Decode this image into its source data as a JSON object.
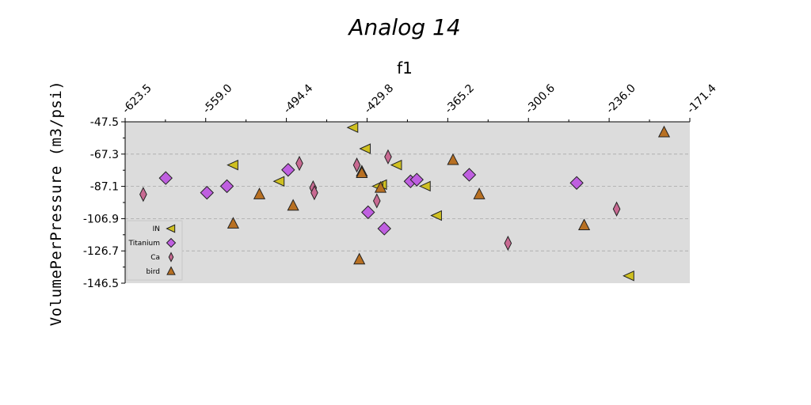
{
  "chart_data": {
    "type": "scatter",
    "title": "Analog 14",
    "xlabel": "f1",
    "ylabel": "VolumePerPressure (m3/psi)",
    "xlim": [
      -623.5,
      -171.4
    ],
    "ylim": [
      -146.5,
      -47.5
    ],
    "xticks": [
      "-623.5",
      "-559.0",
      "-494.4",
      "-429.8",
      "-365.2",
      "-300.6",
      "-236.0",
      "-171.4"
    ],
    "yticks": [
      "-47.5",
      "-67.3",
      "-87.1",
      "-106.9",
      "-126.7",
      "-146.5"
    ],
    "grid": "horizontal dashed",
    "legend_position": "lower-left",
    "series": [
      {
        "name": "IN",
        "marker": "triangle-left",
        "color": "#cfc021",
        "points": [
          {
            "x": -441,
            "y": -51
          },
          {
            "x": -431,
            "y": -64
          },
          {
            "x": -537,
            "y": -74
          },
          {
            "x": -406,
            "y": -74
          },
          {
            "x": -500,
            "y": -84
          },
          {
            "x": -418,
            "y": -86
          },
          {
            "x": -421,
            "y": -87
          },
          {
            "x": -383,
            "y": -87
          },
          {
            "x": -374,
            "y": -105
          },
          {
            "x": -220,
            "y": -142
          }
        ]
      },
      {
        "name": "Titanium",
        "marker": "diamond",
        "color": "#bf5fe0",
        "points": [
          {
            "x": -591,
            "y": -82
          },
          {
            "x": -542,
            "y": -87
          },
          {
            "x": -558,
            "y": -91
          },
          {
            "x": -493,
            "y": -77
          },
          {
            "x": -395,
            "y": -84
          },
          {
            "x": -390,
            "y": -83
          },
          {
            "x": -348,
            "y": -80
          },
          {
            "x": -262,
            "y": -85
          },
          {
            "x": -429,
            "y": -103
          },
          {
            "x": -416,
            "y": -113
          }
        ]
      },
      {
        "name": "Ca",
        "marker": "thin-diamond",
        "color": "#c86a92",
        "points": [
          {
            "x": -609,
            "y": -92
          },
          {
            "x": -484,
            "y": -73
          },
          {
            "x": -438,
            "y": -74
          },
          {
            "x": -413,
            "y": -69
          },
          {
            "x": -473,
            "y": -88
          },
          {
            "x": -472,
            "y": -91
          },
          {
            "x": -422,
            "y": -96
          },
          {
            "x": -317,
            "y": -122
          },
          {
            "x": -230,
            "y": -101
          }
        ]
      },
      {
        "name": "bird",
        "marker": "triangle-up",
        "color": "#b87022",
        "points": [
          {
            "x": -192,
            "y": -54
          },
          {
            "x": -434,
            "y": -78
          },
          {
            "x": -434,
            "y": -79
          },
          {
            "x": -361,
            "y": -71
          },
          {
            "x": -419,
            "y": -88
          },
          {
            "x": -340,
            "y": -92
          },
          {
            "x": -516,
            "y": -92
          },
          {
            "x": -489,
            "y": -99
          },
          {
            "x": -537,
            "y": -110
          },
          {
            "x": -256,
            "y": -111
          },
          {
            "x": -436,
            "y": -132
          }
        ]
      }
    ]
  }
}
